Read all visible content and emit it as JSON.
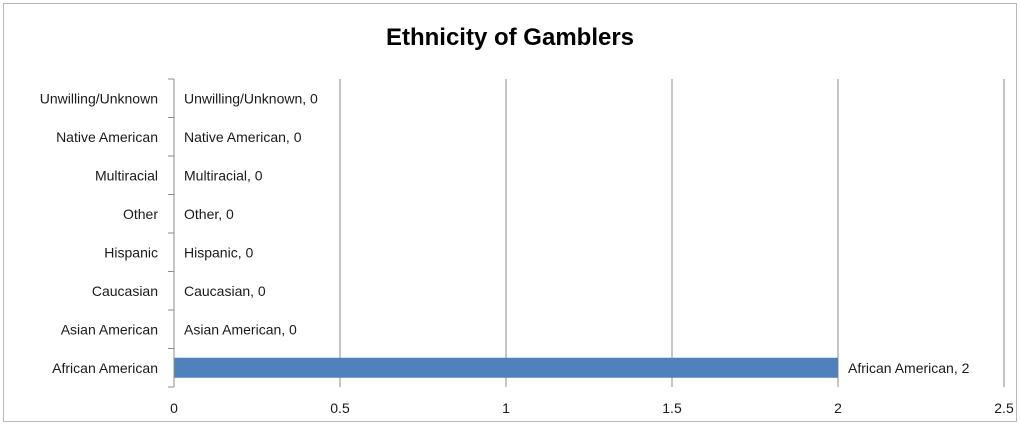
{
  "chart_data": {
    "type": "bar",
    "orientation": "horizontal",
    "title": "Ethnicity of Gamblers",
    "xlabel": "",
    "ylabel": "",
    "categories": [
      "African American",
      "Asian American",
      "Caucasian",
      "Hispanic",
      "Other",
      "Multiracial",
      "Native American",
      "Unwilling/Unknown"
    ],
    "values": [
      2,
      0,
      0,
      0,
      0,
      0,
      0,
      0
    ],
    "data_labels": [
      "African American, 2",
      "Asian American, 0",
      "Caucasian, 0",
      "Hispanic, 0",
      "Other, 0",
      "Multiracial, 0",
      "Native American, 0",
      "Unwilling/Unknown, 0"
    ],
    "xlim": [
      0,
      2.5
    ],
    "xticks": [
      0,
      0.5,
      1,
      1.5,
      2,
      2.5
    ],
    "xtick_labels": [
      "0",
      "0.5",
      "1",
      "1.5",
      "2",
      "2.5"
    ],
    "grid": "vertical",
    "legend": "none",
    "bar_color": "#4f81bd",
    "grid_color": "#8c8c8c"
  }
}
